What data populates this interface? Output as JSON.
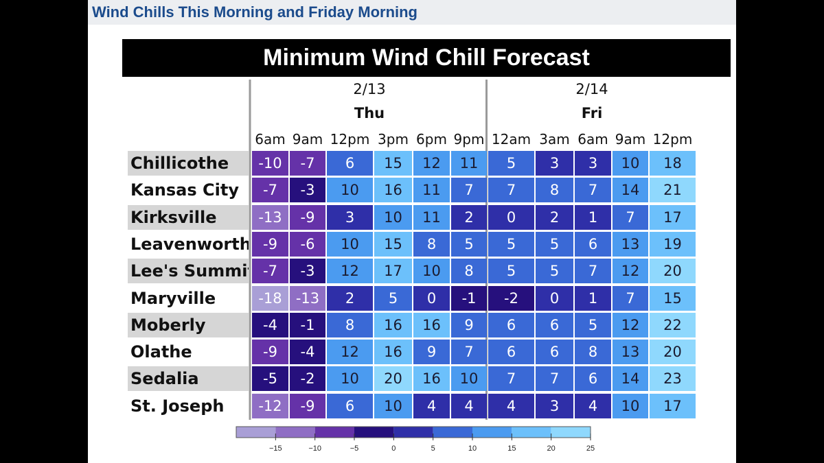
{
  "slide_title": "Wind Chills This Morning and Friday Morning",
  "chart_data": {
    "type": "heatmap",
    "title": "Minimum Wind Chill Forecast",
    "day_groups": [
      {
        "date": "2/13",
        "day": "Thu",
        "columns": 6
      },
      {
        "date": "2/14",
        "day": "Fri",
        "columns": 5
      }
    ],
    "times": [
      "6am",
      "9am",
      "12pm",
      "3pm",
      "6pm",
      "9pm",
      "12am",
      "3am",
      "6am",
      "9am",
      "12pm"
    ],
    "rows": [
      {
        "city": "Chillicothe",
        "values": [
          -10,
          -7,
          6,
          15,
          12,
          11,
          5,
          3,
          3,
          10,
          18
        ]
      },
      {
        "city": "Kansas City",
        "values": [
          -7,
          -3,
          10,
          16,
          11,
          7,
          7,
          8,
          7,
          14,
          21
        ]
      },
      {
        "city": "Kirksville",
        "values": [
          -13,
          -9,
          3,
          10,
          11,
          2,
          0,
          2,
          1,
          7,
          17
        ]
      },
      {
        "city": "Leavenworth",
        "values": [
          -9,
          -6,
          10,
          15,
          8,
          5,
          5,
          5,
          6,
          13,
          19
        ]
      },
      {
        "city": "Lee's Summit",
        "values": [
          -7,
          -3,
          12,
          17,
          10,
          8,
          5,
          5,
          7,
          12,
          20
        ]
      },
      {
        "city": "Maryville",
        "values": [
          -18,
          -13,
          2,
          5,
          0,
          -1,
          -2,
          0,
          1,
          7,
          15
        ]
      },
      {
        "city": "Moberly",
        "values": [
          -4,
          -1,
          8,
          16,
          16,
          9,
          6,
          6,
          5,
          12,
          22
        ]
      },
      {
        "city": "Olathe",
        "values": [
          -9,
          -4,
          12,
          16,
          9,
          7,
          6,
          6,
          8,
          13,
          20
        ]
      },
      {
        "city": "Sedalia",
        "values": [
          -5,
          -2,
          10,
          20,
          16,
          10,
          7,
          7,
          6,
          14,
          23
        ]
      },
      {
        "city": "St. Joseph",
        "values": [
          -12,
          -9,
          6,
          10,
          4,
          4,
          4,
          3,
          4,
          10,
          17
        ]
      }
    ],
    "colorbar": {
      "ticks": [
        -15,
        -10,
        -5,
        0,
        5,
        10,
        15,
        20,
        25
      ],
      "bins": [
        {
          "min": -20,
          "max": -15,
          "color": "#a99fd6"
        },
        {
          "min": -15,
          "max": -10,
          "color": "#8f6ec4"
        },
        {
          "min": -10,
          "max": -5,
          "color": "#6532a8"
        },
        {
          "min": -5,
          "max": 0,
          "color": "#26107d"
        },
        {
          "min": 0,
          "max": 5,
          "color": "#2f2fa8"
        },
        {
          "min": 5,
          "max": 10,
          "color": "#3a69d6"
        },
        {
          "min": 10,
          "max": 15,
          "color": "#4b9bf0"
        },
        {
          "min": 15,
          "max": 20,
          "color": "#6cc0fb"
        },
        {
          "min": 20,
          "max": 25,
          "color": "#8fd8fd"
        }
      ]
    }
  }
}
